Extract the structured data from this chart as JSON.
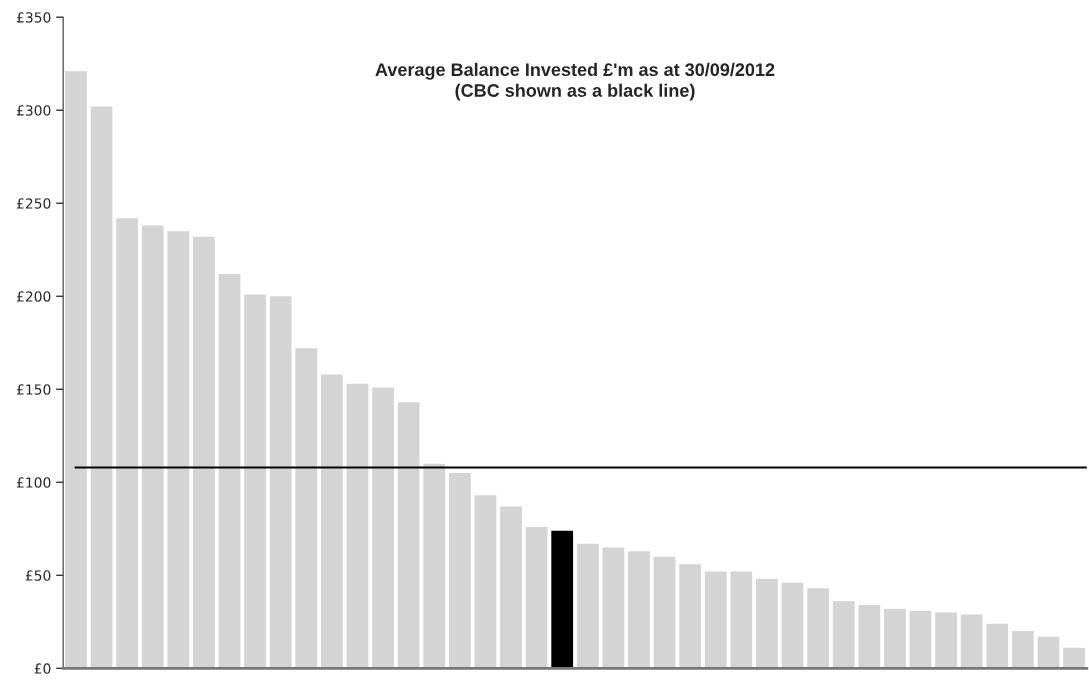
{
  "chart_data": {
    "type": "bar",
    "title": "Average Balance Invested £'m as at 30/09/2012\n(CBC shown as a black line)",
    "categories": [
      null,
      null,
      null,
      null,
      null,
      null,
      null,
      null,
      null,
      null,
      null,
      null,
      null,
      null,
      null,
      null,
      null,
      null,
      null,
      null,
      null,
      null,
      null,
      null,
      null,
      null,
      null,
      null,
      null,
      null,
      null,
      null,
      null,
      null,
      null,
      null,
      null,
      null,
      null,
      null
    ],
    "values": [
      321,
      302,
      242,
      238,
      235,
      232,
      212,
      201,
      200,
      172,
      158,
      153,
      151,
      143,
      110,
      105,
      93,
      87,
      76,
      74,
      67,
      65,
      63,
      60,
      56,
      52,
      52,
      48,
      46,
      43,
      36,
      34,
      32,
      31,
      30,
      29,
      24,
      20,
      17,
      11
    ],
    "colors": [
      "#d4d4d4",
      "#d4d4d4",
      "#d4d4d4",
      "#d4d4d4",
      "#d4d4d4",
      "#d4d4d4",
      "#d4d4d4",
      "#d4d4d4",
      "#d4d4d4",
      "#d4d4d4",
      "#d4d4d4",
      "#d4d4d4",
      "#d4d4d4",
      "#d4d4d4",
      "#d4d4d4",
      "#d4d4d4",
      "#d4d4d4",
      "#d4d4d4",
      "#d4d4d4",
      "#000000",
      "#d4d4d4",
      "#d4d4d4",
      "#d4d4d4",
      "#d4d4d4",
      "#d4d4d4",
      "#d4d4d4",
      "#d4d4d4",
      "#d4d4d4",
      "#d4d4d4",
      "#d4d4d4",
      "#d4d4d4",
      "#d4d4d4",
      "#d4d4d4",
      "#d4d4d4",
      "#d4d4d4",
      "#d4d4d4",
      "#d4d4d4",
      "#d4d4d4",
      "#d4d4d4",
      "#d4d4d4"
    ],
    "ylim": [
      0,
      350
    ],
    "yticks": [
      {
        "value": 0,
        "label": "£0"
      },
      {
        "value": 50,
        "label": "£50"
      },
      {
        "value": 100,
        "label": "£100"
      },
      {
        "value": 150,
        "label": "£150"
      },
      {
        "value": 200,
        "label": "£200"
      },
      {
        "value": 250,
        "label": "£250"
      },
      {
        "value": 300,
        "label": "£300"
      },
      {
        "value": 350,
        "label": "£350"
      }
    ],
    "ref_lines": [
      {
        "axis": "y",
        "value": 108,
        "color": "#000000",
        "line_style": "solid"
      }
    ],
    "grid": false,
    "legend": false
  }
}
